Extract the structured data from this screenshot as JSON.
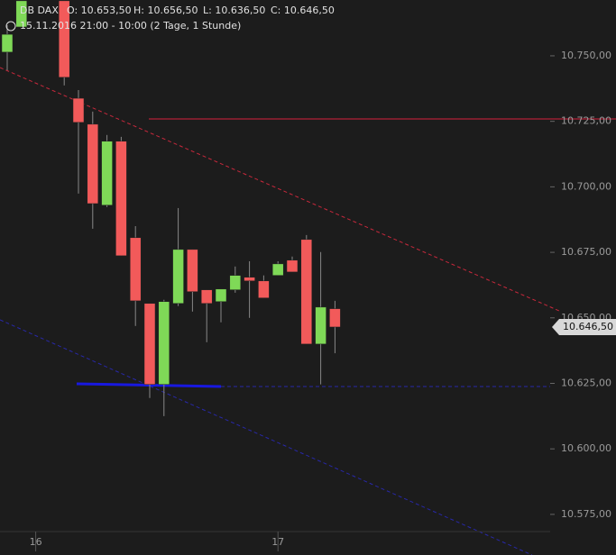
{
  "chart_data": {
    "type": "candlestick",
    "title": "DB DAX",
    "ohlc_labels": [
      "O: 10.653,50",
      "H: 10.656,50",
      "L: 10.636,50",
      "C: 10.646,50"
    ],
    "subtitle": "15.11.2016 21:00 - 10:00  (2 Tage, 1 Stunde)",
    "categories": [
      null,
      null,
      "16",
      null,
      null,
      null,
      null,
      null,
      null,
      null,
      null,
      null,
      null,
      null,
      null,
      null,
      null,
      null,
      null,
      "17",
      null,
      null,
      null,
      null
    ],
    "open": [
      10751.4,
      10761,
      null,
      null,
      10771,
      10733.8,
      10723.9,
      10693,
      10717.4,
      10680.6,
      10655.5,
      10624.6,
      10655.5,
      10676.1,
      10660.7,
      10656.2,
      10660.7,
      10665.5,
      10664.1,
      10666.2,
      10672,
      10679.9,
      10640,
      10653.5
    ],
    "high": [
      10761.7,
      10771,
      null,
      null,
      10771,
      10736.9,
      10728.7,
      10719.8,
      10719.1,
      10685,
      10655.5,
      10656.9,
      10691.9,
      10676.1,
      10660.7,
      10661,
      10669.6,
      10671.6,
      10666.2,
      10671.6,
      10673.4,
      10681.6,
      10675.1,
      10656.5
    ],
    "low": [
      10744.5,
      10761,
      null,
      null,
      10738.7,
      10697.4,
      10684,
      10692.3,
      10673.7,
      10646.9,
      10619.4,
      10612.5,
      10654.5,
      10652.4,
      10640.7,
      10648.3,
      10659.6,
      10650,
      10657.6,
      10666.2,
      10667.5,
      10640,
      10624.6,
      10636.5
    ],
    "close": [
      10758.2,
      10771,
      null,
      null,
      10741.8,
      10724.6,
      10693.6,
      10717.4,
      10673.7,
      10656.5,
      10624.6,
      10656.2,
      10676.1,
      10660,
      10655.5,
      10661,
      10666.2,
      10664.1,
      10657.6,
      10670.6,
      10667.5,
      10640,
      10654.1,
      10646.5
    ],
    "up_color": "#7fd957",
    "down_color": "#f25a5a",
    "ylim": [
      10559.5,
      10771.3
    ],
    "yticks": [
      {
        "value": 10575,
        "label": "10.575,00"
      },
      {
        "value": 10600,
        "label": "10.600,00"
      },
      {
        "value": 10625,
        "label": "10.625,00"
      },
      {
        "value": 10650,
        "label": "10.650,00"
      },
      {
        "value": 10675,
        "label": "10.675,00"
      },
      {
        "value": 10700,
        "label": "10.700,00"
      },
      {
        "value": 10725,
        "label": "10.725,00"
      },
      {
        "value": 10750,
        "label": "10.750,00"
      }
    ],
    "last_price": {
      "value": 10646.5,
      "label": "10.646,50"
    }
  }
}
